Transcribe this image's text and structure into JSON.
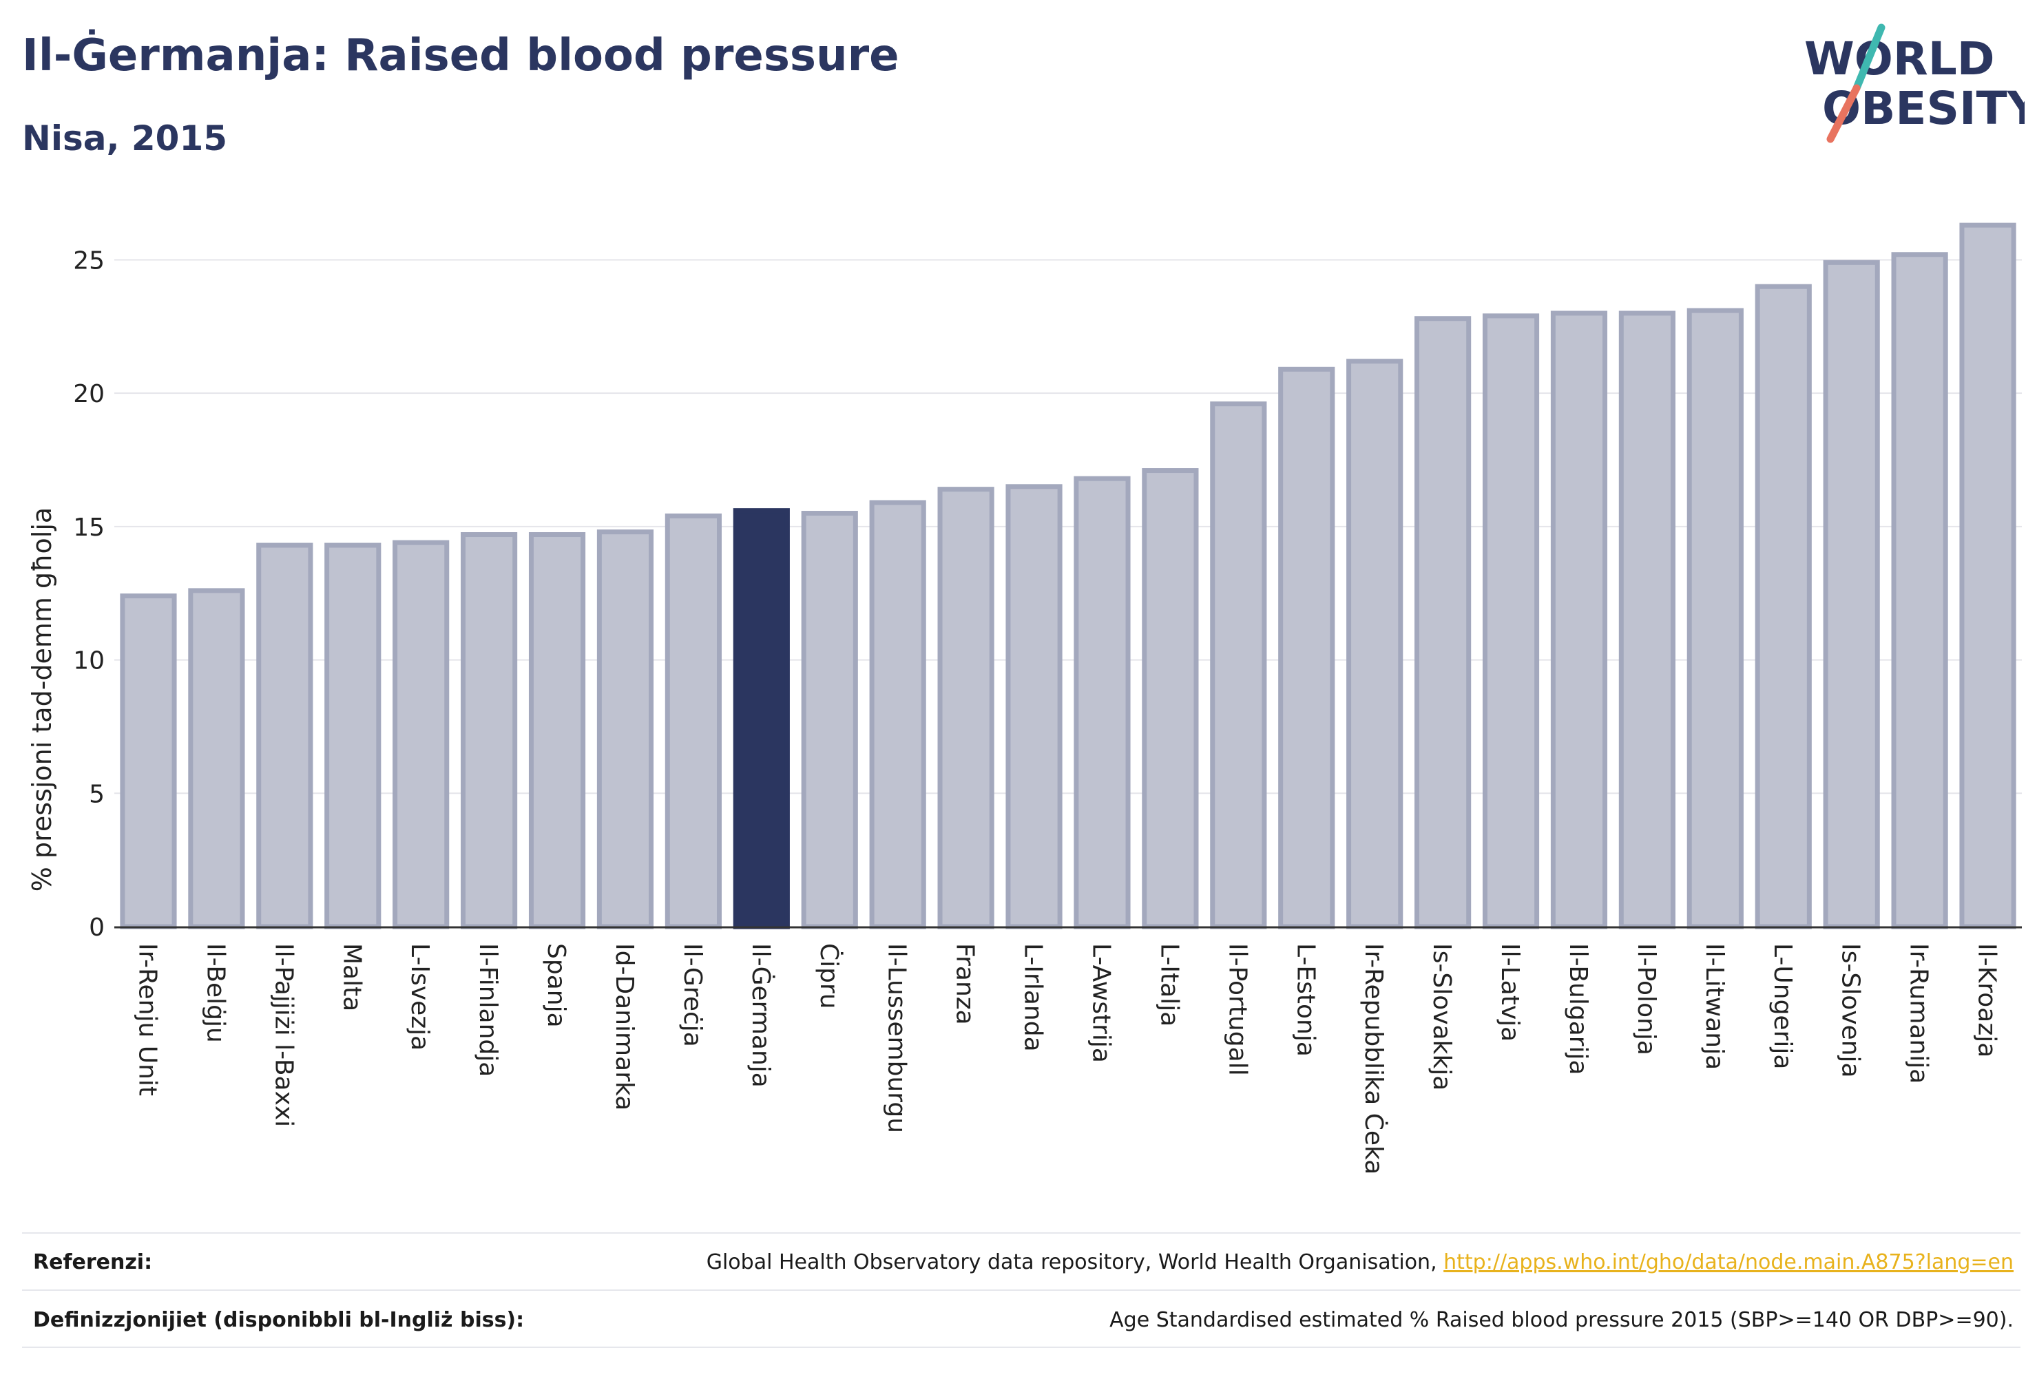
{
  "header": {
    "title": "Il-Ġermanja: Raised blood pressure",
    "subtitle": "Nisa, 2015"
  },
  "logo": {
    "line1": "WORLD",
    "line2": "OBESITY",
    "accent_colors": [
      "#3fb8b0",
      "#e8735f"
    ]
  },
  "colors": {
    "bar_default": "#bfc2d0",
    "bar_default_stroke": "#a3a8bd",
    "bar_highlight": "#2b3660",
    "axis": "#333333",
    "grid": "#e5e5ea"
  },
  "chart_data": {
    "type": "bar",
    "ylabel": "% pressjoni tad-demm għolja",
    "ylim": [
      0,
      27
    ],
    "yticks": [
      0,
      5,
      10,
      15,
      20,
      25
    ],
    "grid": true,
    "highlight": "Il-Ġermanja",
    "categories": [
      "Ir-Renju Unit",
      "Il-Belġju",
      "Il-Pajjiżi l-Baxxi",
      "Malta",
      "L-Isvezja",
      "Il-Finlandja",
      "Spanja",
      "Id-Danimarka",
      "Il-Greċja",
      "Il-Ġermanja",
      "Ċipru",
      "Il-Lussemburgu",
      "Franza",
      "L-Irlanda",
      "L-Awstrija",
      "L-Italja",
      "Il-Portugall",
      "L-Estonja",
      "Ir-Repubblika Ċeka",
      "Is-Slovakkja",
      "Il-Latvja",
      "Il-Bulgarija",
      "Il-Polonja",
      "Il-Litwanja",
      "L-Ungerija",
      "Is-Slovenja",
      "Ir-Rumanija",
      "Il-Kroazja"
    ],
    "values": [
      12.4,
      12.6,
      14.3,
      14.3,
      14.4,
      14.7,
      14.7,
      14.8,
      15.4,
      15.6,
      15.5,
      15.9,
      16.4,
      16.5,
      16.8,
      17.1,
      19.6,
      20.9,
      21.2,
      22.8,
      22.9,
      23.0,
      23.0,
      23.1,
      24.0,
      24.9,
      25.2,
      26.3
    ]
  },
  "footer": {
    "references_label": "Referenzi:",
    "references_text": "Global Health Observatory data repository, World Health Organisation, ",
    "references_link": "http://apps.who.int/gho/data/node.main.A875?lang=en",
    "definitions_label": "Definizzjonijiet (disponibbli bl-Ingliż biss):",
    "definitions_text": "Age Standardised estimated % Raised blood pressure 2015 (SBP>=140 OR DBP>=90)."
  }
}
